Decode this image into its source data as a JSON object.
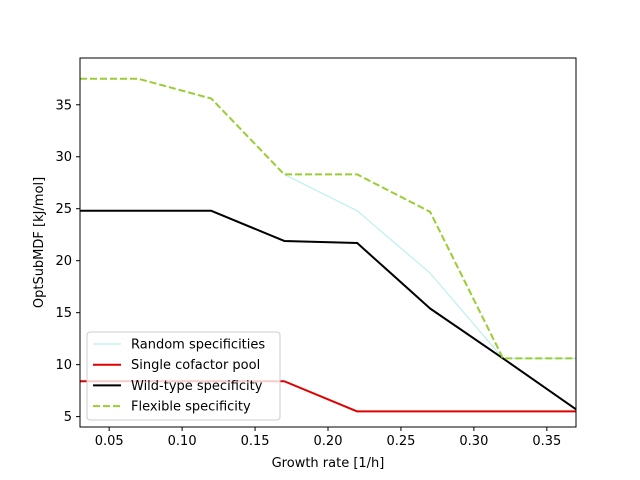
{
  "chart_data": {
    "type": "line",
    "xlabel": "Growth rate [1/h]",
    "ylabel": "OptSubMDF [kJ/mol]",
    "xlim": [
      0.03,
      0.37
    ],
    "ylim": [
      4.0,
      39.5
    ],
    "xticks": [
      0.05,
      0.1,
      0.15,
      0.2,
      0.25,
      0.3,
      0.35
    ],
    "xtick_labels": [
      "0.05",
      "0.10",
      "0.15",
      "0.20",
      "0.25",
      "0.30",
      "0.35"
    ],
    "yticks": [
      5,
      10,
      15,
      20,
      25,
      30,
      35
    ],
    "ytick_labels": [
      "5",
      "10",
      "15",
      "20",
      "25",
      "30",
      "35"
    ],
    "grid": false,
    "legend_position": "lower-left",
    "series": [
      {
        "name": "Random specificities",
        "color": "#aeeeee",
        "style": "solid",
        "x": [
          0.17,
          0.22,
          0.27,
          0.32,
          0.37
        ],
        "y": [
          28.3,
          24.8,
          18.8,
          10.6,
          10.6
        ]
      },
      {
        "name": "Single cofactor pool",
        "color": "#e00000",
        "style": "solid",
        "x": [
          0.03,
          0.07,
          0.12,
          0.17,
          0.22,
          0.27,
          0.32,
          0.37
        ],
        "y": [
          8.4,
          8.4,
          8.4,
          8.4,
          5.5,
          5.5,
          5.5,
          5.5
        ]
      },
      {
        "name": "Wild-type specificity",
        "color": "#000000",
        "style": "solid",
        "x": [
          0.03,
          0.07,
          0.12,
          0.17,
          0.22,
          0.27,
          0.32,
          0.37
        ],
        "y": [
          24.8,
          24.8,
          24.8,
          21.9,
          21.7,
          15.4,
          10.6,
          5.7
        ]
      },
      {
        "name": "Flexible specificity",
        "color": "#9acd32",
        "style": "dashed",
        "x": [
          0.03,
          0.07,
          0.12,
          0.17,
          0.22,
          0.27,
          0.32,
          0.37
        ],
        "y": [
          37.5,
          37.5,
          35.6,
          28.3,
          28.3,
          24.7,
          10.6,
          10.6
        ]
      }
    ]
  }
}
